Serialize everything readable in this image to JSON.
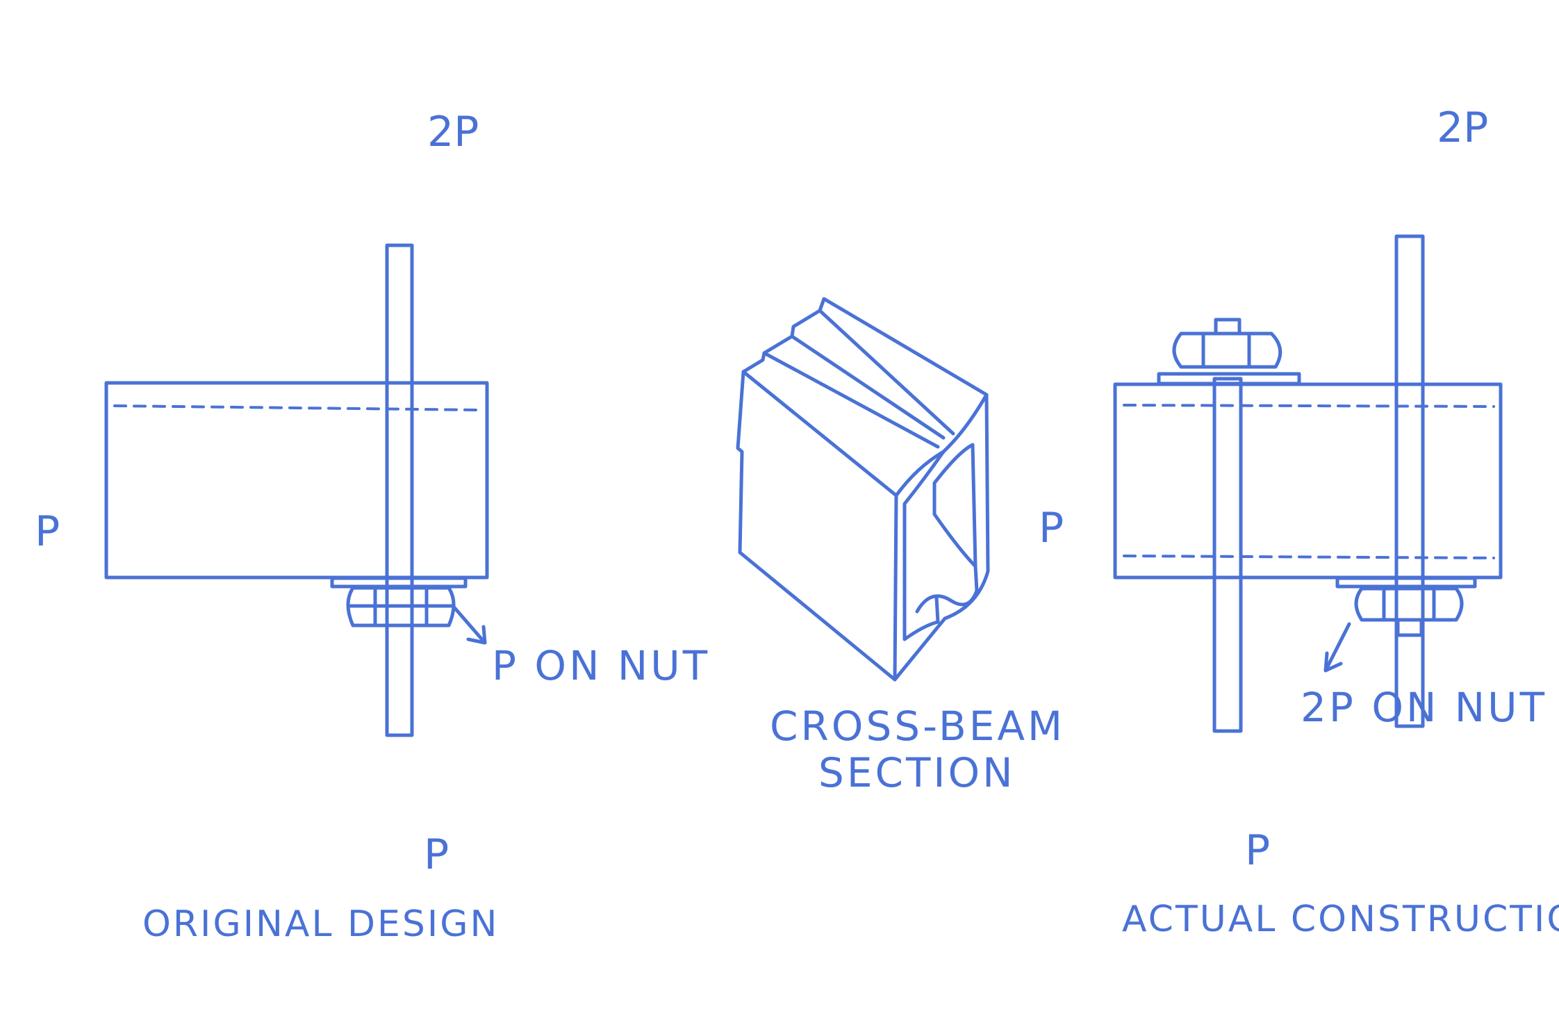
{
  "colors": {
    "ink": "#4a72d6",
    "background": "#ffffff"
  },
  "left_panel": {
    "top_load": "2P",
    "side_load": "P",
    "bottom_load": "P",
    "nut_label": "P ON NUT",
    "caption": "ORIGINAL DESIGN"
  },
  "center_panel": {
    "caption_line1": "CROSS-BEAM",
    "caption_line2": "SECTION"
  },
  "right_panel": {
    "top_load": "2P",
    "side_load": "P",
    "bottom_load": "P",
    "nut_label": "2P ON NUT",
    "caption": "ACTUAL CONSTRUCTION"
  }
}
